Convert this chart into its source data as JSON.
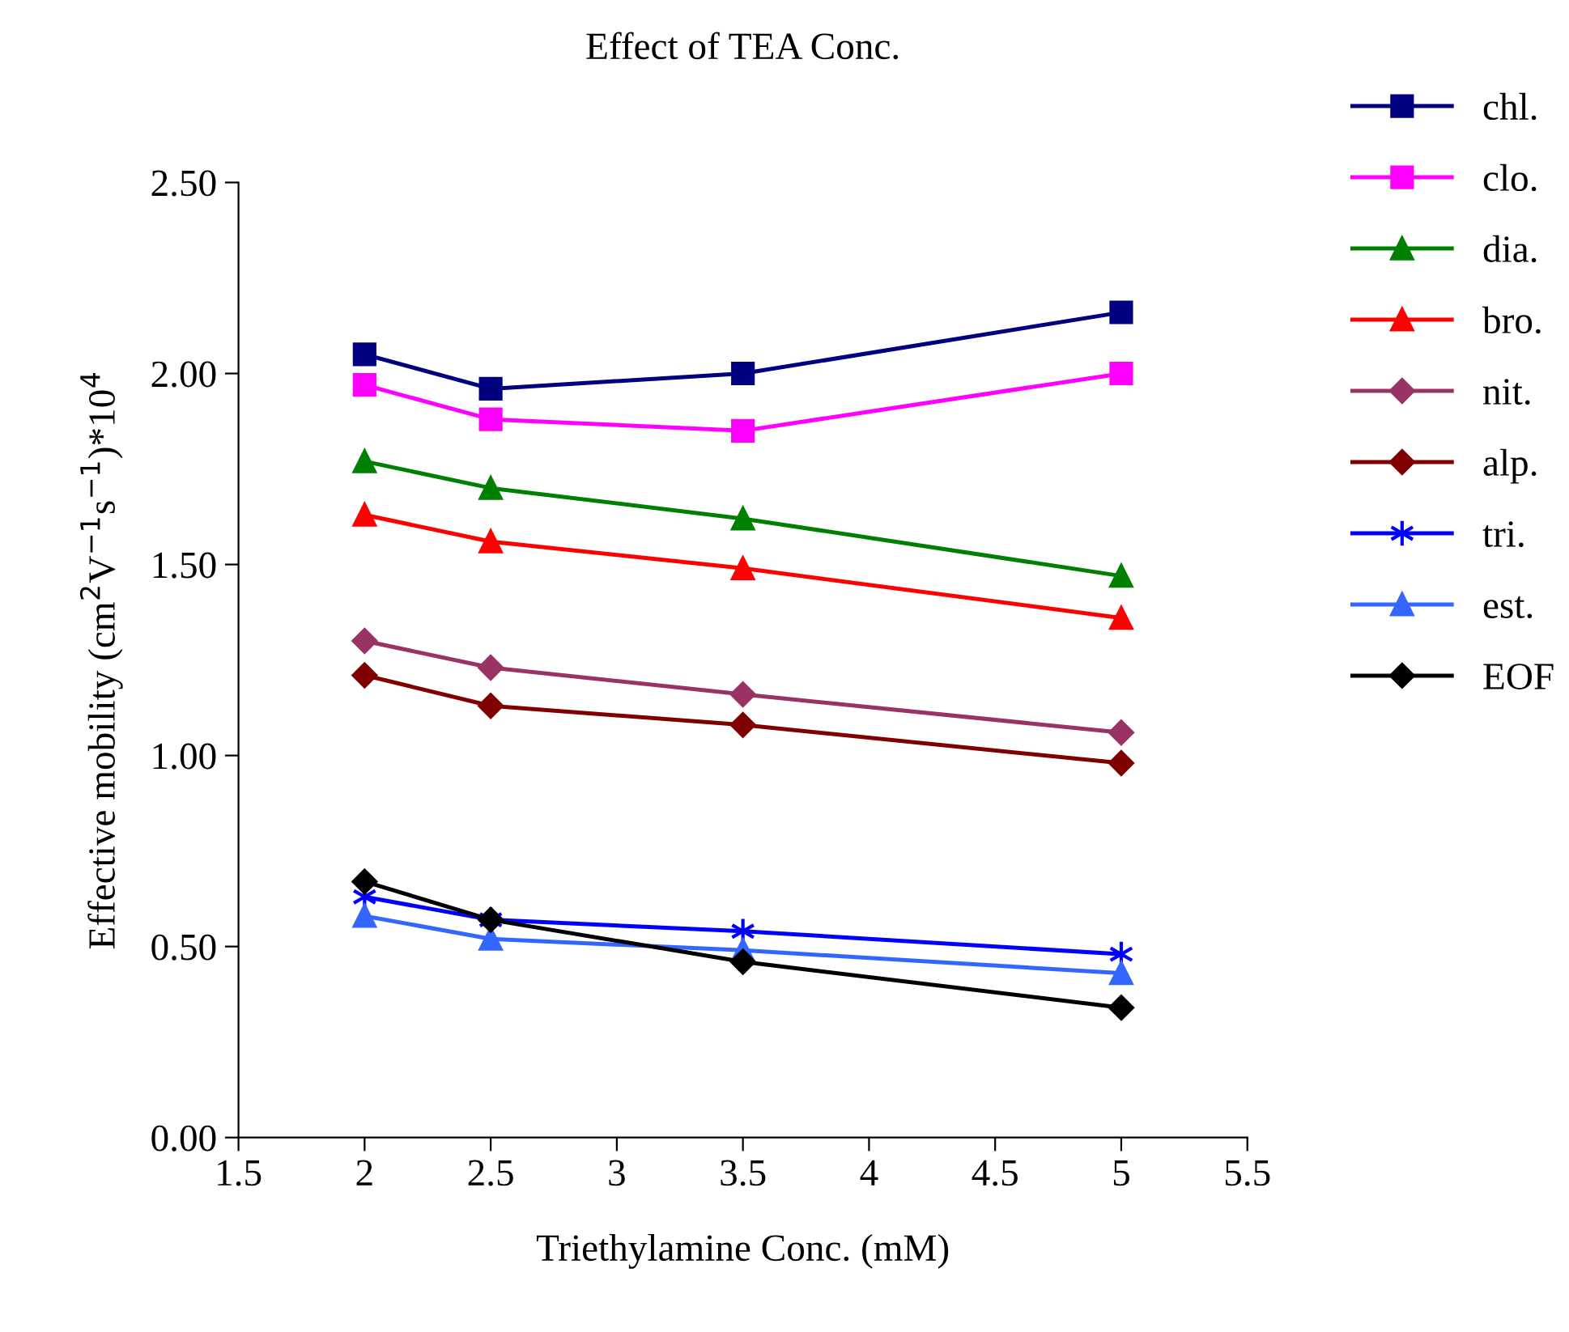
{
  "chart_data": {
    "type": "line",
    "title": "Effect of TEA Conc.",
    "xlabel": "Triethylamine Conc. (mM)",
    "ylabel": "Effective mobility (cm$^{2}$V$^{−1}$s$^{−1}$)*10$^{4}$",
    "x": [
      2,
      2.5,
      3.5,
      5
    ],
    "series": [
      {
        "name": "chl.",
        "color": "#000080",
        "marker": "square",
        "values": [
          2.05,
          1.96,
          2.0,
          2.16
        ]
      },
      {
        "name": "clo.",
        "color": "#ff00ff",
        "marker": "square",
        "values": [
          1.97,
          1.88,
          1.85,
          2.0
        ]
      },
      {
        "name": "dia.",
        "color": "#008000",
        "marker": "triangle",
        "values": [
          1.77,
          1.7,
          1.62,
          1.47
        ]
      },
      {
        "name": "bro.",
        "color": "#ff0000",
        "marker": "triangle",
        "values": [
          1.63,
          1.56,
          1.49,
          1.36
        ]
      },
      {
        "name": "nit.",
        "color": "#993366",
        "marker": "diamond",
        "values": [
          1.3,
          1.23,
          1.16,
          1.06
        ]
      },
      {
        "name": "alp.",
        "color": "#800000",
        "marker": "diamond",
        "values": [
          1.21,
          1.13,
          1.08,
          0.98
        ]
      },
      {
        "name": "tri.",
        "color": "#0000ff",
        "marker": "cross",
        "values": [
          0.63,
          0.57,
          0.54,
          0.48
        ]
      },
      {
        "name": "est.",
        "color": "#3366ff",
        "marker": "triangle",
        "values": [
          0.58,
          0.52,
          0.49,
          0.43
        ]
      },
      {
        "name": "EOF",
        "color": "#000000",
        "marker": "diamond",
        "values": [
          0.67,
          0.57,
          0.46,
          0.34
        ]
      }
    ],
    "xlim": [
      1.5,
      5.5
    ],
    "xticks": [
      1.5,
      2,
      2.5,
      3,
      3.5,
      4,
      4.5,
      5,
      5.5
    ],
    "ylim": [
      0,
      2.5
    ],
    "yticks": [
      {
        "value": 0,
        "label": "0.00"
      },
      {
        "value": 0.5,
        "label": "0.50"
      },
      {
        "value": 1,
        "label": "1.00"
      },
      {
        "value": 1.5,
        "label": "1.50"
      },
      {
        "value": 2,
        "label": "2.00"
      },
      {
        "value": 2.5,
        "label": "2.50"
      }
    ],
    "grid": false,
    "legend": "right",
    "line_style": "solid"
  }
}
